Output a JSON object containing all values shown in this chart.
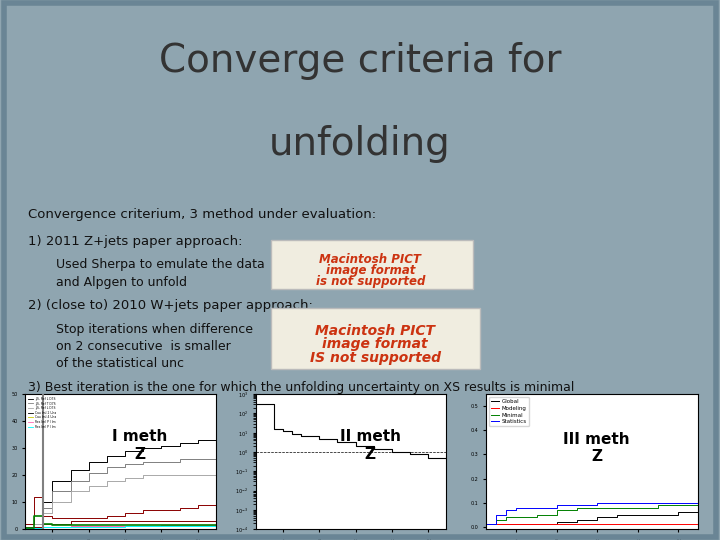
{
  "title_line1": "Converge criteria for",
  "title_line2": "unfolding",
  "title_fontsize": 28,
  "title_color": "#333333",
  "title_bg_color": "#dde3e8",
  "body_bg_color": "#e8edf0",
  "slide_bg_color": "#8fa5b0",
  "border_color": "#6a8595",
  "text_color": "#111111",
  "subtitle": "Convergence criterium, 3 method under evaluation:",
  "item1_header": "1) 2011 Z+jets paper approach:",
  "item1_sub1": "Used Sherpa to emulate the data",
  "item1_sub2": "and Alpgen to unfold",
  "pict1_text_line1": "Macintosh PICT",
  "pict1_text_line2": "image format",
  "pict1_text_line3": "is not supported",
  "item2_header": "2) (close to) 2010 W+jets paper approach:",
  "item2_sub1": "Stop iterations when difference",
  "item2_sub2": "on 2 consecutive  is smaller",
  "item2_sub3": "of the statistical unc",
  "pict2_text_line1": "Macintosh PICT",
  "pict2_text_line2": "image format",
  "pict2_text_line3": "IS not supported",
  "item3_header": "3) Best iteration is the one for which the unfolding uncertainty on XS results is minimal",
  "plot1_label": "I meth\nZ",
  "plot2_label": "II meth\nZ",
  "plot3_label": "III meth\nZ",
  "pict_bg": "#f0ede0",
  "pict_border": "#bbbbbb",
  "pict_text_color": "#cc3311",
  "plot_bg": "#ffffff",
  "font_size_body": 9.0,
  "font_size_item": 9.5,
  "font_size_title": 28
}
